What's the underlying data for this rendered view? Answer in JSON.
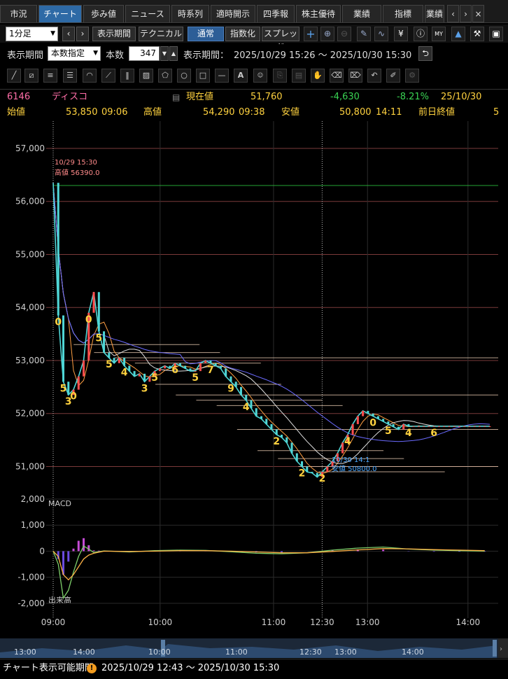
{
  "tabs": [
    {
      "label": "市況"
    },
    {
      "label": "チャート"
    },
    {
      "label": "歩み値"
    },
    {
      "label": "ニュース"
    },
    {
      "label": "時系列"
    },
    {
      "label": "適時開示"
    },
    {
      "label": "四季報"
    },
    {
      "label": "株主優待"
    },
    {
      "label": "業績"
    },
    {
      "label": "指標"
    },
    {
      "label": "業績"
    }
  ],
  "tab_arrows": [
    "‹",
    "›",
    "×"
  ],
  "toolbar": {
    "interval_value": "1分足",
    "prev": "‹",
    "next": "›",
    "display_period": "表示期間",
    "technical": "テクニカル",
    "normal": "通常",
    "index": "指数化",
    "spread": "スプレッド",
    "icons": [
      "plus-icon",
      "zoom-in-icon",
      "zoom-out-icon",
      "pen-icon",
      "chart-pattern-icon",
      "yen-icon",
      "info-icon",
      "my-icon",
      "area-chart-icon",
      "wrench-icon",
      "window-icon"
    ]
  },
  "period": {
    "label": "表示期間",
    "mode": "本数指定",
    "count_label": "本数",
    "count_value": "347",
    "range_label": "表示期間：",
    "range_value": "2025/10/29 15:26 ～ 2025/10/30 15:30",
    "refresh": "⮌"
  },
  "quote": {
    "code": "6146",
    "name": "ディスコ",
    "current_label": "現在値",
    "current": "51,760",
    "change": "-4,630",
    "change_pct": "-8.21%",
    "date": "25/10/30",
    "open_label": "始値",
    "open": "53,850",
    "open_time": "09:06",
    "high_label": "高値",
    "high": "54,290",
    "high_time": "09:38",
    "low_label": "安値",
    "low": "50,800",
    "low_time": "14:11",
    "prev_close_label": "前日終値",
    "prev_close_cut": "5"
  },
  "colors": {
    "up": "#ff4d4d",
    "down": "#4fd6d6",
    "accent": "#2d5e97",
    "neg": "#39d353",
    "label": "#49a7ff",
    "count_label": "#ffd23f"
  },
  "chart_data": {
    "type": "line",
    "title": "",
    "price_axis": {
      "ticks": [
        "57,000",
        "56,000",
        "55,000",
        "54,000",
        "53,000",
        "52,000",
        "51,000"
      ],
      "ylim": [
        50650,
        57250
      ]
    },
    "time_axis": {
      "ticks": [
        "09:00",
        "10:00",
        "11:00",
        "12:30",
        "13:00",
        "14:00"
      ]
    },
    "annotations": {
      "high_date": "10/29 15:30",
      "high_value": "高値 56390.0",
      "low_date": "10/30 14:1",
      "low_value": "安値 50800.0"
    },
    "price_series": {
      "name": "price",
      "x": [
        0,
        4,
        8,
        12,
        16,
        20,
        24,
        28,
        32,
        36,
        40,
        44,
        48,
        52,
        56,
        60,
        64,
        68,
        72,
        76,
        80,
        84,
        88,
        92,
        96,
        100,
        104,
        108,
        112,
        116,
        120,
        124,
        128,
        132,
        136,
        140,
        144,
        148,
        152,
        156,
        160,
        164,
        168,
        172,
        176,
        180,
        184,
        188,
        192,
        196,
        200,
        204,
        208,
        212,
        216,
        220,
        224,
        228,
        232,
        236,
        240,
        244,
        248,
        252,
        256,
        260,
        264,
        268,
        272,
        276,
        280,
        284,
        288,
        292,
        296,
        300,
        304,
        308,
        312,
        316,
        320,
        324,
        328,
        332,
        336,
        340,
        344
      ],
      "values": [
        56350,
        53850,
        52600,
        52350,
        52450,
        52700,
        53000,
        53900,
        54290,
        53550,
        53150,
        53050,
        52950,
        53050,
        52900,
        52800,
        52700,
        52750,
        52600,
        52700,
        52800,
        52850,
        52900,
        52850,
        52950,
        52900,
        52850,
        52800,
        52800,
        52950,
        53000,
        52950,
        52900,
        52850,
        52700,
        52600,
        52500,
        52350,
        52250,
        52100,
        51950,
        51900,
        51800,
        51700,
        51600,
        51550,
        51450,
        51250,
        51100,
        51000,
        50900,
        50880,
        50800,
        50900,
        51000,
        51100,
        51250,
        51450,
        51600,
        51800,
        51950,
        52050,
        52000,
        51950,
        51900,
        51850,
        51800,
        51750,
        51700,
        51800,
        51760,
        51760,
        51760,
        51760,
        51760,
        51760,
        51760,
        51760,
        51760,
        51760,
        51760,
        51760,
        51760,
        51760,
        51760,
        51760,
        51760
      ]
    },
    "macd": {
      "label": "MACD",
      "ticks": [
        "2,000",
        "1,000",
        "0",
        "-1,000",
        "-2,000"
      ],
      "ylim": [
        -2300,
        2000
      ],
      "macd_x": [
        0,
        4,
        8,
        12,
        16,
        20,
        24,
        28,
        32,
        36,
        40,
        60,
        80,
        100,
        120,
        140,
        160,
        180,
        200,
        220,
        240,
        260,
        280,
        300,
        320,
        340
      ],
      "macd_values": [
        0,
        -500,
        -1800,
        -1500,
        -800,
        -200,
        200,
        80,
        -50,
        -20,
        10,
        -30,
        20,
        40,
        30,
        -20,
        -80,
        -100,
        -60,
        40,
        120,
        160,
        80,
        40,
        20,
        0
      ],
      "signal_values": [
        0,
        -200,
        -900,
        -1100,
        -900,
        -600,
        -300,
        -150,
        -80,
        -40,
        0,
        -10,
        0,
        20,
        20,
        0,
        -30,
        -60,
        -60,
        -10,
        50,
        100,
        90,
        60,
        40,
        20
      ]
    },
    "volume": {
      "label": "出来高"
    },
    "overview_ticks": [
      "13:00",
      "14:00",
      "10:00",
      "11:00",
      "12:30",
      "13:00",
      "14:00"
    ]
  },
  "status": {
    "label": "チャート表示可能期間",
    "warn_icon": "!",
    "range": "2025/10/29 12:43 ～ 2025/10/30 15:30"
  }
}
